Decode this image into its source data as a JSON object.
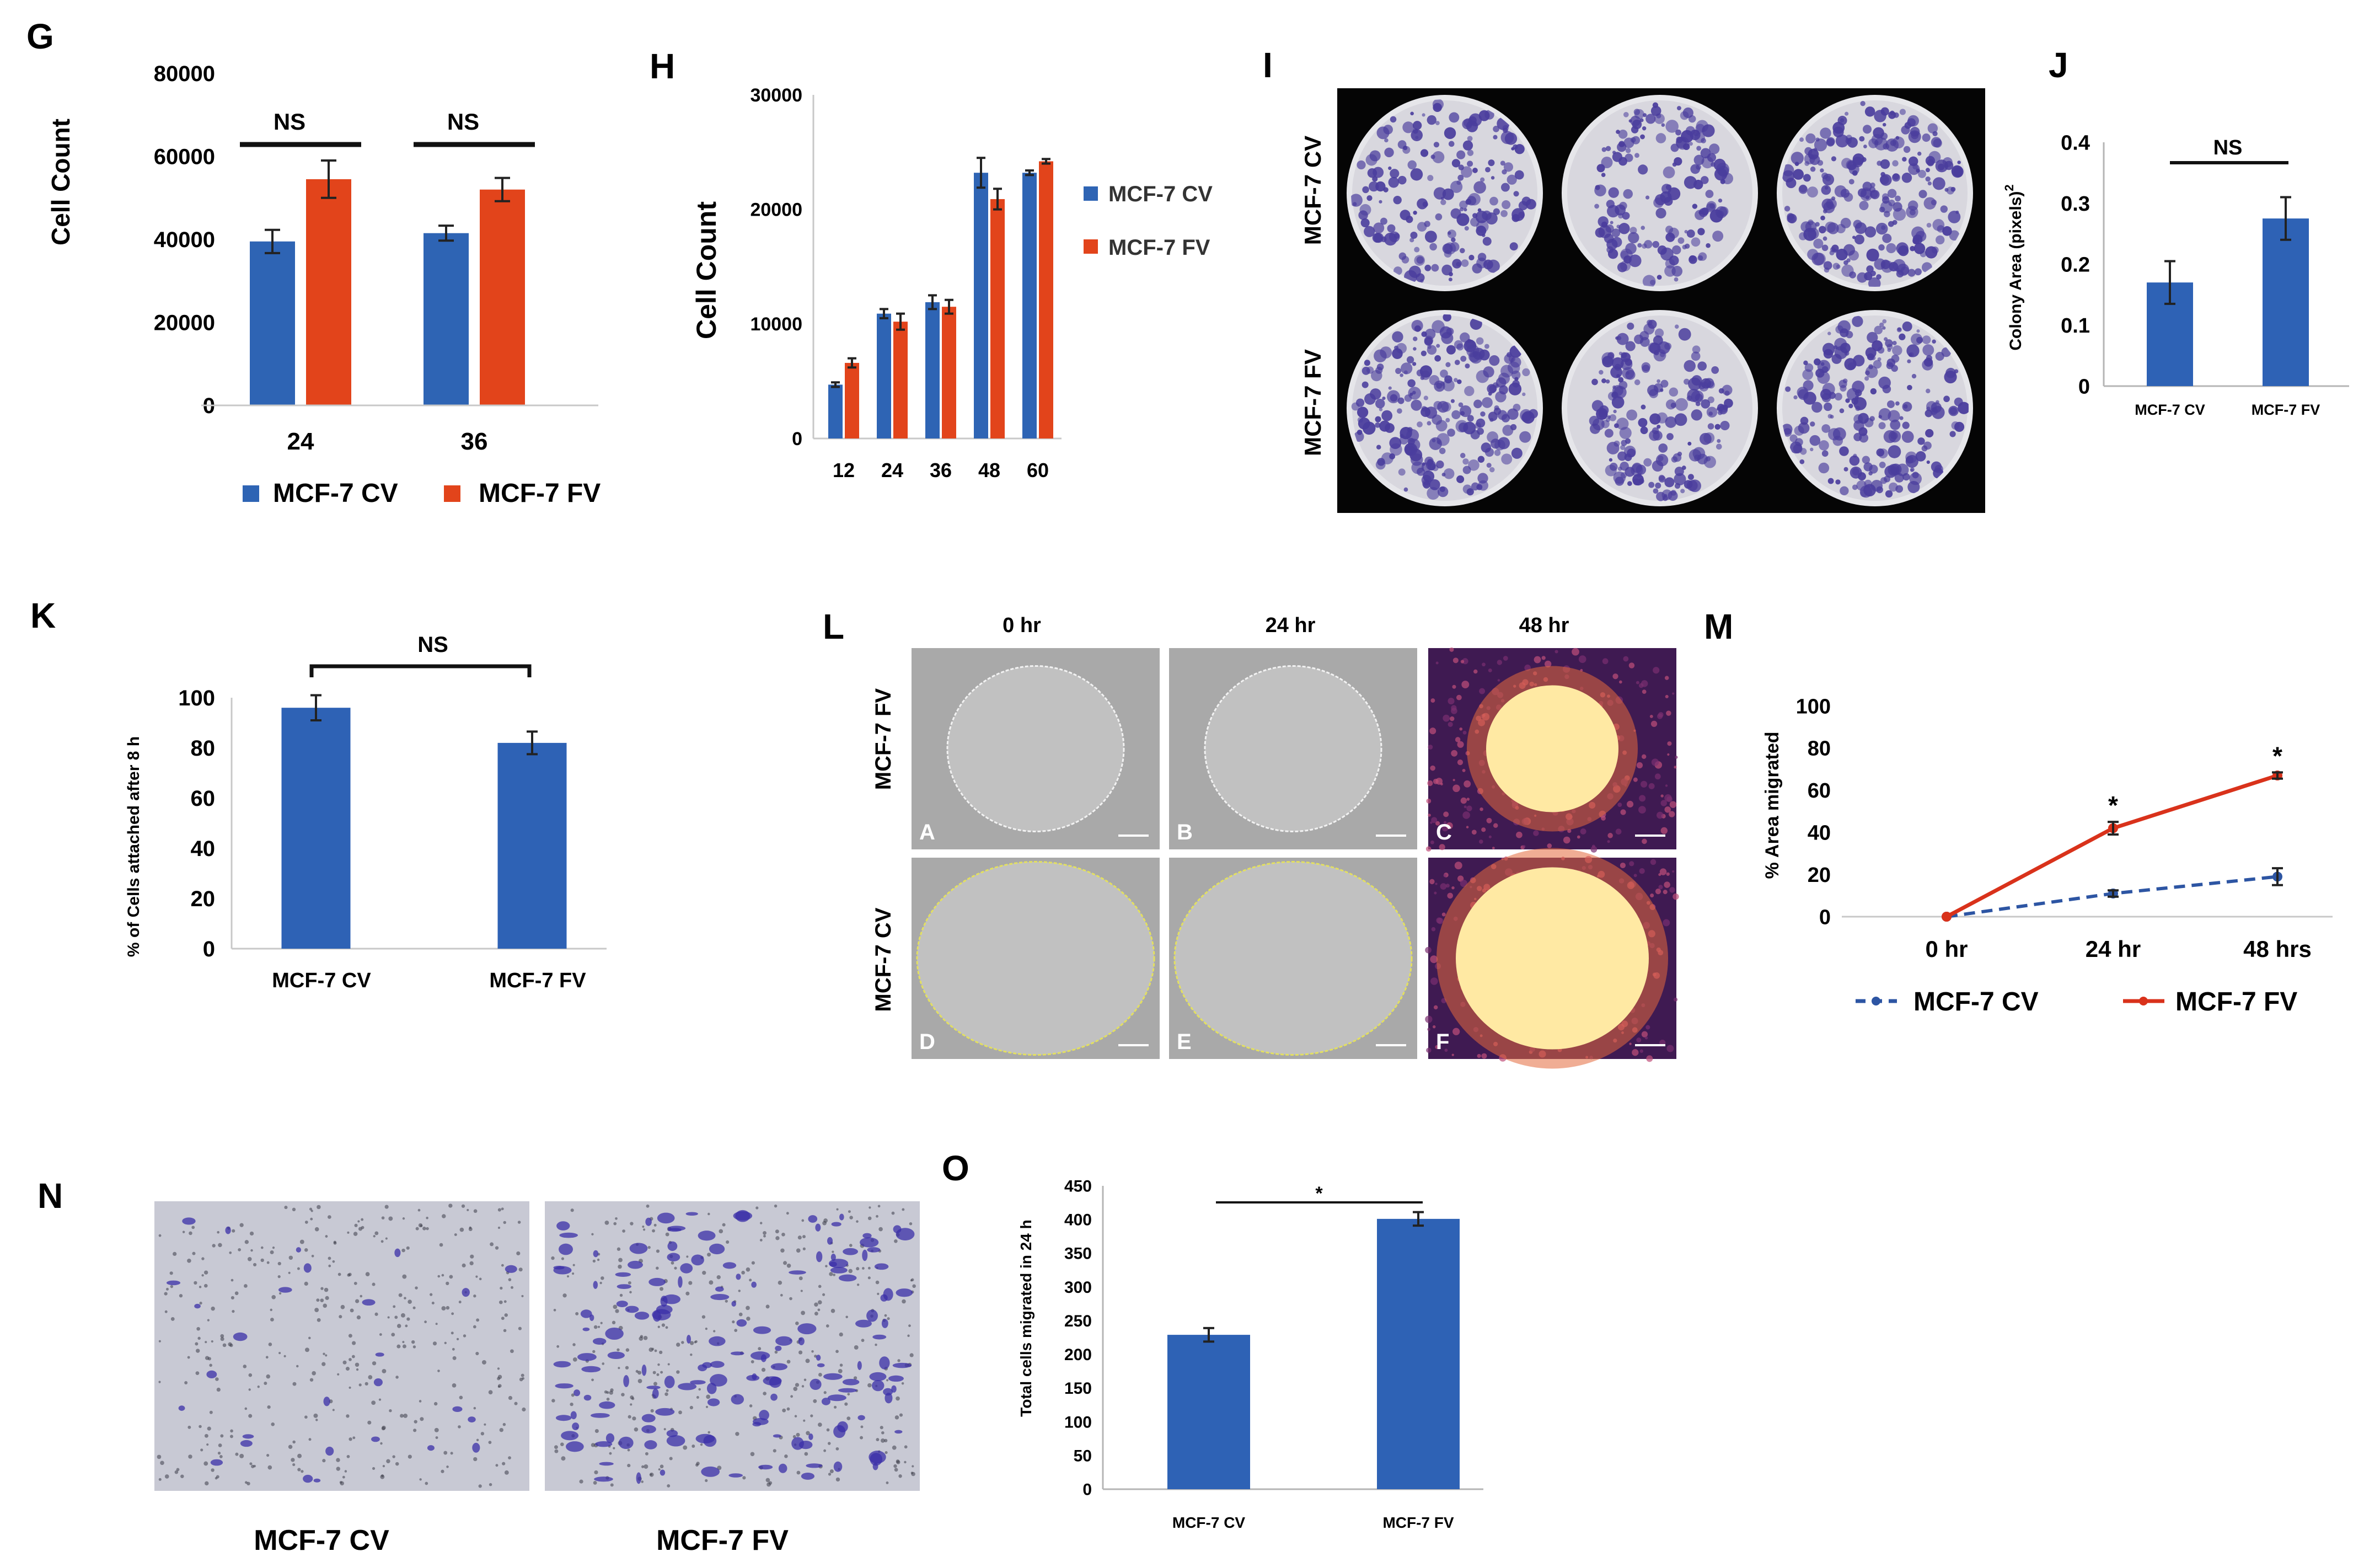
{
  "colors": {
    "cv": "#2e64b4",
    "fv": "#e2441b",
    "mono": "#2e62b5",
    "m_cv": "#2d55a3",
    "m_fv": "#d9321b",
    "plate_bg": "#050505",
    "plate_fill": "#d8d7de",
    "stain": "#4a3d9d",
    "wound_bg": "#a9a9a9",
    "wound_inner": "#c1c1c1",
    "heat_bg": "#3f1a52",
    "heat_core": "#ffe9a3",
    "transwell_bg": "#c8c9d4"
  },
  "chart_data": [
    {
      "panel": "G",
      "type": "bar",
      "categories": [
        "24",
        "36"
      ],
      "series": [
        {
          "name": "MCF-7 CV",
          "values": [
            39500,
            41500
          ],
          "errors": [
            2800,
            1800
          ]
        },
        {
          "name": "MCF-7 FV",
          "values": [
            54500,
            52000
          ],
          "errors": [
            4500,
            2800
          ]
        }
      ],
      "ylabel": "Cell Count",
      "ylim": [
        0,
        80000
      ],
      "yticks": [
        "0",
        "20000",
        "40000",
        "60000",
        "80000"
      ],
      "annotations": [
        "NS",
        "NS"
      ],
      "legend": "bottom"
    },
    {
      "panel": "H",
      "type": "bar",
      "categories": [
        "12",
        "24",
        "36",
        "48",
        "60"
      ],
      "series": [
        {
          "name": "MCF-7 CV",
          "values": [
            4700,
            10900,
            11900,
            23200,
            23200
          ],
          "errors": [
            200,
            400,
            600,
            1300,
            200
          ]
        },
        {
          "name": "MCF-7 FV",
          "values": [
            6600,
            10200,
            11500,
            20900,
            24200
          ],
          "errors": [
            400,
            700,
            600,
            900,
            200
          ]
        }
      ],
      "ylabel": "Cell Count",
      "ylim": [
        0,
        30000
      ],
      "yticks": [
        "0",
        "10000",
        "20000",
        "30000"
      ],
      "legend": "right"
    },
    {
      "panel": "J",
      "type": "bar",
      "categories": [
        "MCF-7 CV",
        "MCF-7 FV"
      ],
      "values": [
        0.17,
        0.275
      ],
      "errors": [
        0.035,
        0.035
      ],
      "ylabel": "Colony Area (pixels)",
      "ylabel_sup": "2",
      "ylim": [
        0,
        0.4
      ],
      "yticks": [
        "0",
        "0.1",
        "0.2",
        "0.3",
        "0.4"
      ],
      "annotations": [
        "NS"
      ]
    },
    {
      "panel": "K",
      "type": "bar",
      "categories": [
        "MCF-7 CV",
        "MCF-7 FV"
      ],
      "values": [
        96,
        82
      ],
      "errors": [
        5,
        4.5
      ],
      "ylabel": "% of Cells attached after 8 h",
      "ylim": [
        0,
        100
      ],
      "yticks": [
        "0",
        "20",
        "40",
        "60",
        "80",
        "100"
      ],
      "annotations": [
        "NS"
      ]
    },
    {
      "panel": "M",
      "type": "line",
      "categories": [
        "0 hr",
        "24 hr",
        "48 hrs"
      ],
      "series": [
        {
          "name": "MCF-7 CV",
          "values": [
            0,
            11,
            19
          ],
          "errors": [
            0,
            1.5,
            4
          ]
        },
        {
          "name": "MCF-7 FV",
          "values": [
            0,
            42,
            67
          ],
          "errors": [
            0,
            3,
            1.5
          ]
        }
      ],
      "ylabel": "% Area migrated",
      "ylim": [
        0,
        100
      ],
      "yticks": [
        "0",
        "20",
        "40",
        "60",
        "80",
        "100"
      ],
      "annotations": [
        "*",
        "*"
      ],
      "legend": "bottom"
    },
    {
      "panel": "O",
      "type": "bar",
      "categories": [
        "MCF-7 CV",
        "MCF-7 FV"
      ],
      "values": [
        229,
        401
      ],
      "errors": [
        10,
        10
      ],
      "ylabel": "Total cells migrated  in 24 h",
      "ylim": [
        0,
        450
      ],
      "yticks": [
        "0",
        "50",
        "100",
        "150",
        "200",
        "250",
        "300",
        "350",
        "400",
        "450"
      ],
      "annotations": [
        "*"
      ]
    }
  ],
  "panel_i": {
    "letter": "I",
    "row_labels": [
      "MCF-7 CV",
      "MCF-7 FV"
    ]
  },
  "panel_l": {
    "letter": "L",
    "columns": [
      "0 hr",
      "24 hr",
      "48 hr"
    ],
    "row_labels": [
      "MCF-7 FV",
      "MCF-7 CV"
    ],
    "tile_letters": [
      "A",
      "B",
      "C",
      "D",
      "E",
      "F"
    ]
  },
  "panel_n": {
    "letter": "N",
    "captions": [
      "MCF-7 CV",
      "MCF-7 FV"
    ]
  }
}
